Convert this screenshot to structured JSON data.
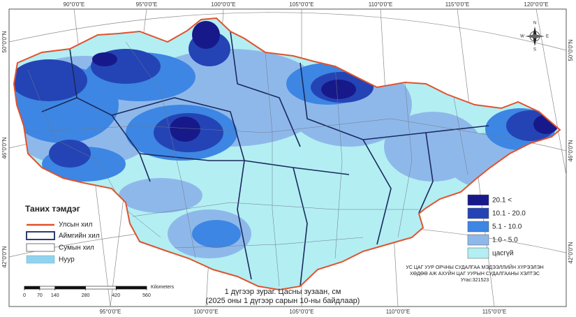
{
  "graticule": {
    "top": [
      "90°0'0\"E",
      "95°0'0\"E",
      "100°0'0\"E",
      "105°0'0\"E",
      "110°0'0\"E",
      "115°0'0\"E",
      "120°0'0\"E"
    ],
    "bottom": [
      "95°0'0\"E",
      "100°0'0\"E",
      "105°0'0\"E",
      "110°0'0\"E",
      "115°0'0\"E"
    ],
    "left": [
      "50°0'0\"N",
      "46°0'0\"N",
      "42°0'0\"N"
    ],
    "right": [
      "50°0'0\"N",
      "46°0'0\"N",
      "42°0'0\"N"
    ]
  },
  "compass": {
    "n": "N",
    "s": "S",
    "e": "E",
    "w": "W"
  },
  "legend": {
    "title": "Таних тэмдэг",
    "items": [
      "Улсын хил",
      "Аймгийн хил",
      "Сумын хил",
      "Нуур"
    ]
  },
  "snow_legend": {
    "items": [
      "20.1 <",
      "10.1 - 20.0",
      "5.1 - 10.0",
      "1.0 - 5.0",
      "цасгүй"
    ]
  },
  "scale_bar": {
    "unit": "Kilometers",
    "ticks": [
      0,
      70,
      140,
      280,
      420,
      560
    ]
  },
  "caption": {
    "line1": "1 дүгээр зураг. Цасны зузаан, см",
    "line2": "(2025 оны 1 дүгээр сарын 10-ны байдлаар)"
  },
  "credits": [
    "УС ЦАГ УУР ОРЧНЫ СУДАЛГАА МЭДЭЭЛЛИЙН ХҮРЭЭЛЭН",
    "ХӨДӨӨ АЖ АХУЙН ЦАГ УУРЫН СУДАЛГААНЫ ХЭЛТЭС",
    "Утас:321523"
  ]
}
